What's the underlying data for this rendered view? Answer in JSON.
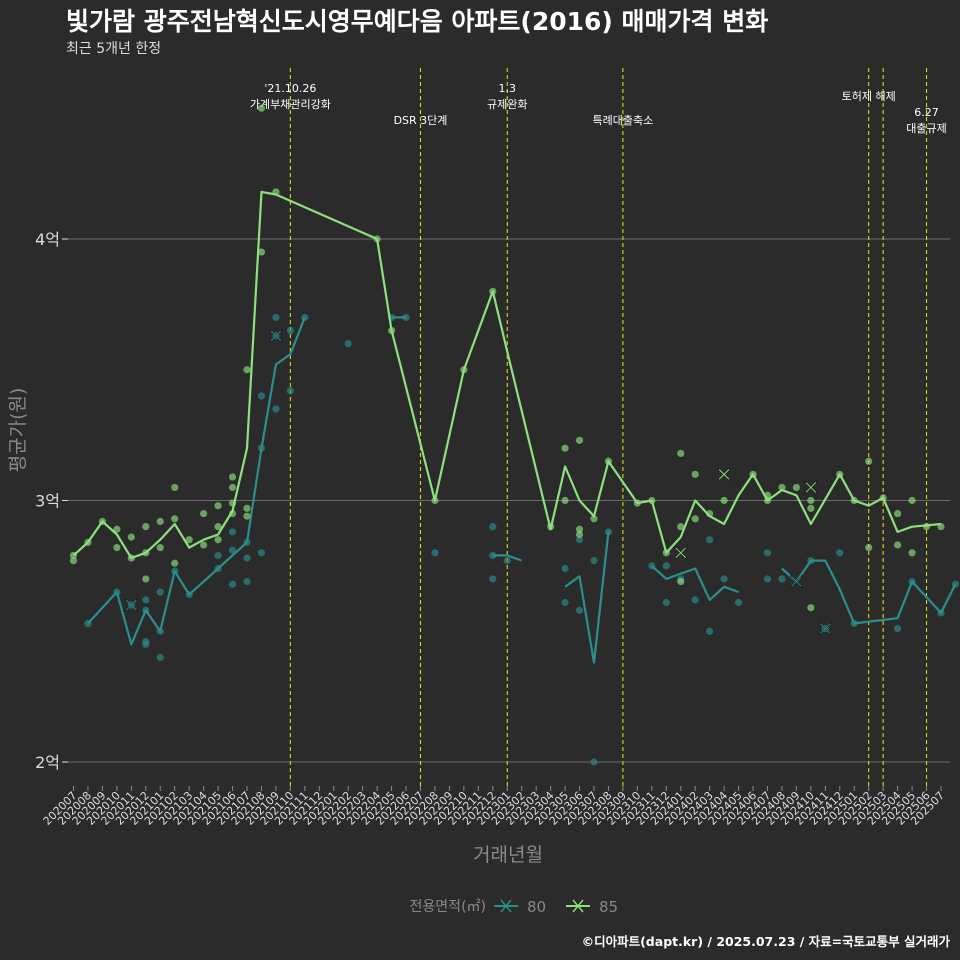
{
  "title": "빛가람 광주전남혁신도시영무예다음 아파트(2016) 매매가격 변화",
  "subtitle": "최근 5개년 한정",
  "caption": "©디아파트(dapt.kr) / 2025.07.23 / 자료=국토교통부 실거래가",
  "colors": {
    "background": "#2b2b2b",
    "grid": "#6b6b6b",
    "vline": "#d8d820",
    "s80": "#2a8f8c",
    "s85": "#8ee07e",
    "axis_text": "#dddddd",
    "axis_title": "#8a8a8a"
  },
  "chart_data": {
    "type": "line",
    "xlabel": "거래년월",
    "ylabel": "평균가(원)",
    "yticks": [
      {
        "value": 2.0,
        "label": "2억"
      },
      {
        "value": 3.0,
        "label": "3억"
      },
      {
        "value": 4.0,
        "label": "4억"
      }
    ],
    "y_unit": "억원",
    "ylim": [
      1.9,
      4.75
    ],
    "grid": true,
    "categories": [
      "202007",
      "202008",
      "202009",
      "202010",
      "202011",
      "202012",
      "202101",
      "202102",
      "202103",
      "202104",
      "202105",
      "202106",
      "202107",
      "202108",
      "202109",
      "202110",
      "202111",
      "202112",
      "202201",
      "202202",
      "202203",
      "202204",
      "202205",
      "202206",
      "202207",
      "202208",
      "202209",
      "202210",
      "202211",
      "202212",
      "202301",
      "202302",
      "202303",
      "202304",
      "202305",
      "202306",
      "202307",
      "202308",
      "202309",
      "202310",
      "202311",
      "202312",
      "202401",
      "202402",
      "202403",
      "202404",
      "202405",
      "202406",
      "202407",
      "202408",
      "202409",
      "202410",
      "202411",
      "202412",
      "202501",
      "202502",
      "202503",
      "202504",
      "202505",
      "202506",
      "202507"
    ],
    "legend": {
      "title": "전용면적(㎡)",
      "position": "bottom",
      "items": [
        "80",
        "85"
      ]
    },
    "series": [
      {
        "name": "80",
        "line": [
          [
            "2020-08",
            2.53
          ],
          [
            "2020-10",
            2.65
          ],
          [
            "2020-11",
            2.45
          ],
          [
            "2020-12",
            2.58
          ],
          [
            "2021-01",
            2.5
          ],
          [
            "2021-02",
            2.73
          ],
          [
            "2021-03",
            2.64
          ],
          [
            "2021-05",
            2.74
          ],
          [
            "2021-07",
            2.84
          ],
          [
            "2021-08",
            3.2
          ],
          [
            "2021-09",
            3.52
          ],
          [
            "2021-10",
            3.56
          ],
          [
            "2021-11",
            3.7
          ],
          null,
          [
            "2022-05",
            3.7
          ],
          [
            "2022-06",
            3.7
          ],
          null,
          [
            "2022-12",
            2.79
          ],
          [
            "2023-01",
            2.79
          ],
          [
            "2023-02",
            2.77
          ],
          null,
          [
            "2023-05",
            2.67
          ],
          [
            "2023-06",
            2.71
          ],
          [
            "2023-07",
            2.38
          ],
          [
            "2023-08",
            2.88
          ],
          null,
          [
            "2023-11",
            2.75
          ],
          [
            "2023-12",
            2.7
          ],
          [
            "2024-01",
            2.72
          ],
          [
            "2024-02",
            2.74
          ],
          [
            "2024-03",
            2.62
          ],
          [
            "2024-04",
            2.67
          ],
          [
            "2024-05",
            2.65
          ],
          null,
          [
            "2024-08",
            2.74
          ],
          [
            "2024-09",
            2.69
          ],
          [
            "2024-10",
            2.77
          ],
          [
            "2024-11",
            2.77
          ],
          [
            "2024-12",
            2.66
          ],
          [
            "2025-01",
            2.53
          ],
          [
            "2025-04",
            2.55
          ],
          [
            "2025-05",
            2.69
          ],
          [
            "2025-07",
            2.57
          ],
          [
            "2025-08",
            2.68
          ]
        ],
        "points": [
          [
            "2020-08",
            2.53
          ],
          [
            "2020-10",
            2.65
          ],
          [
            "2020-11",
            2.6
          ],
          [
            "2020-12",
            2.45
          ],
          [
            "2020-12",
            2.58
          ],
          [
            "2020-12",
            2.46
          ],
          [
            "2020-12",
            2.62
          ],
          [
            "2021-01",
            2.4
          ],
          [
            "2021-01",
            2.5
          ],
          [
            "2021-01",
            2.65
          ],
          [
            "2021-02",
            2.73
          ],
          [
            "2021-03",
            2.64
          ],
          [
            "2021-05",
            2.74
          ],
          [
            "2021-05",
            2.79
          ],
          [
            "2021-06",
            2.81
          ],
          [
            "2021-06",
            2.68
          ],
          [
            "2021-06",
            2.88
          ],
          [
            "2021-07",
            2.78
          ],
          [
            "2021-07",
            2.69
          ],
          [
            "2021-07",
            2.84
          ],
          [
            "2021-08",
            2.8
          ],
          [
            "2021-08",
            3.2
          ],
          [
            "2021-08",
            3.4
          ],
          [
            "2021-09",
            3.35
          ],
          [
            "2021-09",
            3.7
          ],
          [
            "2021-09",
            3.63
          ],
          [
            "2021-10",
            3.42
          ],
          [
            "2021-10",
            3.65
          ],
          [
            "2021-11",
            3.7
          ],
          [
            "2022-02",
            3.6
          ],
          [
            "2022-05",
            3.7
          ],
          [
            "2022-06",
            3.7
          ],
          [
            "2022-08",
            2.8
          ],
          [
            "2022-12",
            2.79
          ],
          [
            "2022-12",
            2.7
          ],
          [
            "2022-12",
            2.9
          ],
          [
            "2023-01",
            2.77
          ],
          [
            "2023-05",
            2.74
          ],
          [
            "2023-05",
            2.61
          ],
          [
            "2023-06",
            2.85
          ],
          [
            "2023-06",
            2.58
          ],
          [
            "2023-07",
            2.77
          ],
          [
            "2023-07",
            2.0
          ],
          [
            "2023-08",
            2.88
          ],
          [
            "2023-11",
            2.75
          ],
          [
            "2023-12",
            2.75
          ],
          [
            "2023-12",
            2.61
          ],
          [
            "2024-01",
            2.7
          ],
          [
            "2024-02",
            2.62
          ],
          [
            "2024-03",
            2.85
          ],
          [
            "2024-03",
            2.5
          ],
          [
            "2024-04",
            2.7
          ],
          [
            "2024-05",
            2.61
          ],
          [
            "2024-07",
            2.8
          ],
          [
            "2024-07",
            2.7
          ],
          [
            "2024-08",
            2.7
          ],
          [
            "2024-10",
            2.77
          ],
          [
            "2024-11",
            2.51
          ],
          [
            "2024-12",
            2.8
          ],
          [
            "2025-01",
            2.53
          ],
          [
            "2025-04",
            2.51
          ],
          [
            "2025-05",
            2.69
          ],
          [
            "2025-07",
            2.57
          ],
          [
            "2025-08",
            2.68
          ]
        ],
        "crosses": [
          [
            "2020-11",
            2.6
          ],
          [
            "2021-09",
            3.63
          ],
          [
            "2024-09",
            2.69
          ],
          [
            "2024-11",
            2.51
          ]
        ]
      },
      {
        "name": "85",
        "line": [
          [
            "2020-07",
            2.79
          ],
          [
            "2020-08",
            2.84
          ],
          [
            "2020-09",
            2.92
          ],
          [
            "2020-10",
            2.87
          ],
          [
            "2020-11",
            2.78
          ],
          [
            "2020-12",
            2.8
          ],
          [
            "2021-01",
            2.85
          ],
          [
            "2021-02",
            2.91
          ],
          [
            "2021-03",
            2.82
          ],
          [
            "2021-04",
            2.85
          ],
          [
            "2021-05",
            2.87
          ],
          [
            "2021-06",
            2.96
          ],
          [
            "2021-07",
            3.2
          ],
          [
            "2021-08",
            4.18
          ],
          [
            "2021-09",
            4.17
          ],
          [
            "2022-04",
            4.0
          ],
          [
            "2022-05",
            3.65
          ],
          [
            "2022-08",
            3.0
          ],
          [
            "2022-10",
            3.5
          ],
          [
            "2022-12",
            3.8
          ],
          [
            "2023-01",
            3.57
          ],
          [
            "2023-04",
            2.89
          ],
          [
            "2023-05",
            3.13
          ],
          [
            "2023-06",
            3.0
          ],
          [
            "2023-07",
            2.94
          ],
          [
            "2023-08",
            3.15
          ],
          [
            "2023-10",
            2.99
          ],
          [
            "2023-11",
            3.0
          ],
          [
            "2023-12",
            2.8
          ],
          [
            "2024-01",
            2.86
          ],
          [
            "2024-02",
            3.0
          ],
          [
            "2024-03",
            2.94
          ],
          [
            "2024-04",
            2.91
          ],
          [
            "2024-05",
            3.02
          ],
          [
            "2024-06",
            3.1
          ],
          [
            "2024-07",
            3.0
          ],
          [
            "2024-08",
            3.04
          ],
          [
            "2024-09",
            3.02
          ],
          [
            "2024-10",
            2.91
          ],
          [
            "2024-12",
            3.1
          ],
          [
            "2025-01",
            3.0
          ],
          [
            "2025-02",
            2.98
          ],
          [
            "2025-03",
            3.01
          ],
          [
            "2025-04",
            2.88
          ],
          [
            "2025-05",
            2.9
          ],
          [
            "2025-07",
            2.91
          ]
        ],
        "points": [
          [
            "2020-07",
            2.77
          ],
          [
            "2020-07",
            2.79
          ],
          [
            "2020-08",
            2.84
          ],
          [
            "2020-09",
            2.92
          ],
          [
            "2020-10",
            2.82
          ],
          [
            "2020-10",
            2.89
          ],
          [
            "2020-11",
            2.78
          ],
          [
            "2020-11",
            2.86
          ],
          [
            "2020-12",
            2.9
          ],
          [
            "2020-12",
            2.8
          ],
          [
            "2020-12",
            2.7
          ],
          [
            "2021-01",
            2.92
          ],
          [
            "2021-01",
            2.82
          ],
          [
            "2021-02",
            3.05
          ],
          [
            "2021-02",
            2.76
          ],
          [
            "2021-02",
            2.93
          ],
          [
            "2021-03",
            2.85
          ],
          [
            "2021-04",
            2.95
          ],
          [
            "2021-04",
            2.83
          ],
          [
            "2021-05",
            2.85
          ],
          [
            "2021-05",
            2.98
          ],
          [
            "2021-05",
            2.9
          ],
          [
            "2021-06",
            2.99
          ],
          [
            "2021-06",
            3.05
          ],
          [
            "2021-06",
            3.09
          ],
          [
            "2021-06",
            2.95
          ],
          [
            "2021-07",
            3.5
          ],
          [
            "2021-07",
            2.97
          ],
          [
            "2021-07",
            2.94
          ],
          [
            "2021-08",
            3.95
          ],
          [
            "2021-08",
            4.5
          ],
          [
            "2021-09",
            4.18
          ],
          [
            "2022-04",
            4.0
          ],
          [
            "2022-05",
            3.65
          ],
          [
            "2022-08",
            3.0
          ],
          [
            "2022-10",
            3.5
          ],
          [
            "2022-12",
            3.8
          ],
          [
            "2023-04",
            2.9
          ],
          [
            "2023-05",
            3.2
          ],
          [
            "2023-05",
            3.0
          ],
          [
            "2023-06",
            2.89
          ],
          [
            "2023-06",
            2.87
          ],
          [
            "2023-06",
            3.23
          ],
          [
            "2023-07",
            2.93
          ],
          [
            "2023-08",
            3.15
          ],
          [
            "2023-10",
            2.99
          ],
          [
            "2023-11",
            3.0
          ],
          [
            "2023-12",
            2.8
          ],
          [
            "2024-01",
            3.18
          ],
          [
            "2024-01",
            2.9
          ],
          [
            "2024-01",
            2.69
          ],
          [
            "2024-02",
            3.1
          ],
          [
            "2024-02",
            2.93
          ],
          [
            "2024-03",
            2.95
          ],
          [
            "2024-04",
            3.0
          ],
          [
            "2024-06",
            3.1
          ],
          [
            "2024-07",
            3.0
          ],
          [
            "2024-07",
            3.02
          ],
          [
            "2024-08",
            3.05
          ],
          [
            "2024-09",
            3.05
          ],
          [
            "2024-10",
            3.0
          ],
          [
            "2024-10",
            2.97
          ],
          [
            "2024-10",
            2.59
          ],
          [
            "2024-12",
            3.1
          ],
          [
            "2025-01",
            3.0
          ],
          [
            "2025-02",
            3.15
          ],
          [
            "2025-02",
            2.82
          ],
          [
            "2025-03",
            3.01
          ],
          [
            "2025-04",
            2.95
          ],
          [
            "2025-04",
            2.83
          ],
          [
            "2025-05",
            3.0
          ],
          [
            "2025-05",
            2.8
          ],
          [
            "2025-06",
            2.9
          ],
          [
            "2025-07",
            2.9
          ]
        ],
        "crosses": [
          [
            "2024-01",
            2.8
          ],
          [
            "2024-04",
            3.1
          ],
          [
            "2024-10",
            3.05
          ]
        ]
      }
    ],
    "annotations": [
      {
        "date": "2021-10",
        "lines": [
          "'21.10.26",
          "가계부채관리강화"
        ]
      },
      {
        "date": "2022-07",
        "lines": [
          "DSR 3단계"
        ]
      },
      {
        "date": "2023-01",
        "lines": [
          "1.3",
          "규제완화"
        ]
      },
      {
        "date": "2023-09",
        "lines": [
          "특례대출축소"
        ]
      },
      {
        "date": "2025-02",
        "lines": [
          "토허제 해제"
        ]
      },
      {
        "date": "2025-03",
        "lines": []
      },
      {
        "date": "2025-06",
        "lines": [
          "6.27",
          "대출규제"
        ]
      }
    ]
  }
}
